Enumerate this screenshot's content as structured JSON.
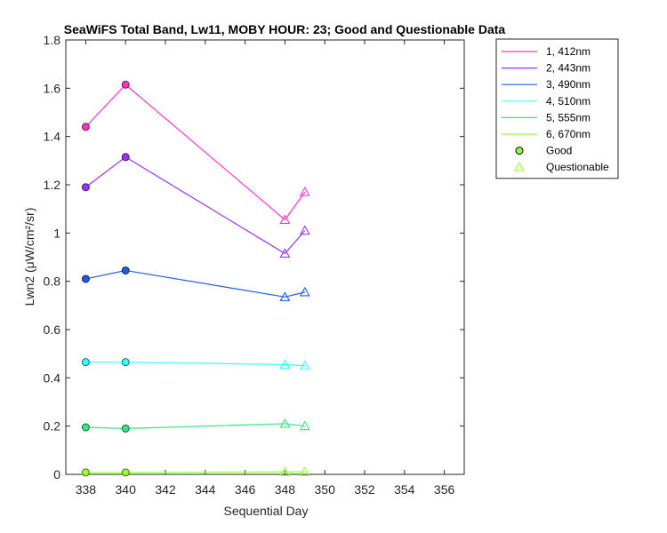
{
  "chart_data": {
    "type": "line",
    "title": "SeaWiFS Total Band, Lw11, MOBY HOUR: 23;  Good and Questionable Data",
    "xlabel": "Sequential Day",
    "ylabel": "Lwn2 (μW/cm²/sr)",
    "xlim": [
      337,
      357
    ],
    "ylim": [
      0,
      1.8
    ],
    "xticks": [
      "338",
      "340",
      "342",
      "344",
      "346",
      "348",
      "350",
      "352",
      "354",
      "356"
    ],
    "yticks": [
      "0",
      "0.2",
      "0.4",
      "0.6",
      "0.8",
      "1",
      "1.2",
      "1.4",
      "1.6",
      "1.8"
    ],
    "grid": false,
    "legend_position": "outside-top-right",
    "x": [
      338,
      340,
      348,
      349
    ],
    "quality": [
      "Good",
      "Good",
      "Questionable",
      "Questionable"
    ],
    "series": [
      {
        "name": "1, 412nm",
        "color": "#ff33cc",
        "values": [
          1.44,
          1.615,
          1.055,
          1.17
        ]
      },
      {
        "name": "2, 443nm",
        "color": "#9933ff",
        "values": [
          1.19,
          1.315,
          0.915,
          1.01
        ]
      },
      {
        "name": "3, 490nm",
        "color": "#1f5ce6",
        "values": [
          0.81,
          0.845,
          0.735,
          0.755
        ]
      },
      {
        "name": "4, 510nm",
        "color": "#33ffff",
        "values": [
          0.465,
          0.465,
          0.455,
          0.45
        ]
      },
      {
        "name": "5, 555nm",
        "color": "#33e680",
        "values": [
          0.195,
          0.19,
          0.21,
          0.2
        ]
      },
      {
        "name": "6, 670nm",
        "color": "#99ff33",
        "values": [
          0.008,
          0.008,
          0.01,
          0.01
        ]
      }
    ],
    "marker_legend": [
      {
        "label": "Good",
        "marker": "circle",
        "fill": "#99ff33"
      },
      {
        "label": "Questionable",
        "marker": "triangle",
        "fill": "none",
        "stroke": "#99ff33"
      }
    ]
  }
}
